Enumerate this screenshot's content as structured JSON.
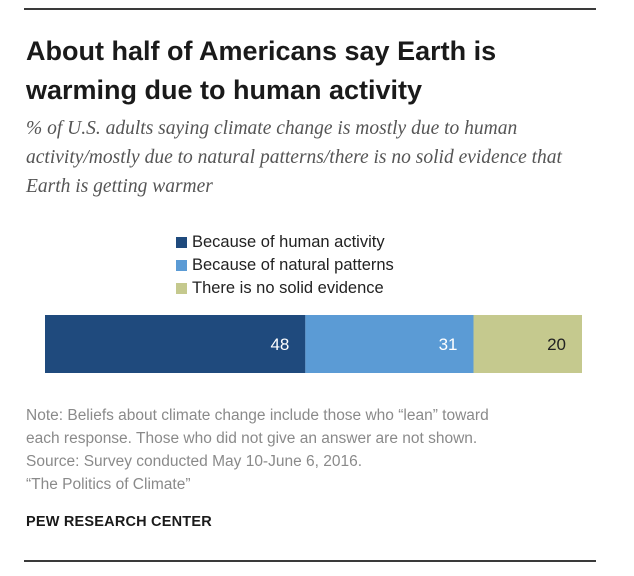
{
  "title": "About half of Americans say Earth is warming due to human activity",
  "subtitle": "% of U.S. adults saying climate change is mostly due to human activity/mostly due to natural patterns/there is no solid evidence that Earth is getting warmer",
  "notes": [
    "Note: Beliefs about climate change include those who “lean” toward",
    "each response. Those who did not give an answer are not shown.",
    "Source: Survey conducted May 10-June 6, 2016.",
    "“The Politics of Climate”"
  ],
  "source_org": "PEW RESEARCH CENTER",
  "chart_data": {
    "type": "bar",
    "orientation": "horizontal-stacked",
    "title": "About half of Americans say Earth is warming due to human activity",
    "subtitle": "% of U.S. adults saying climate change is mostly due to human activity/mostly due to natural patterns/there is no solid evidence that Earth is getting warmer",
    "categories": [
      ""
    ],
    "series": [
      {
        "name": "Because of human activity",
        "values": [
          48
        ],
        "color": "#1f4a7d"
      },
      {
        "name": "Because of natural patterns",
        "values": [
          31
        ],
        "color": "#5b9bd5"
      },
      {
        "name": "There is no solid evidence",
        "values": [
          20
        ],
        "color": "#c5c98e"
      }
    ],
    "data_labels": [
      "48",
      "31",
      "20"
    ],
    "legend_position": "top-center",
    "grid": false
  }
}
